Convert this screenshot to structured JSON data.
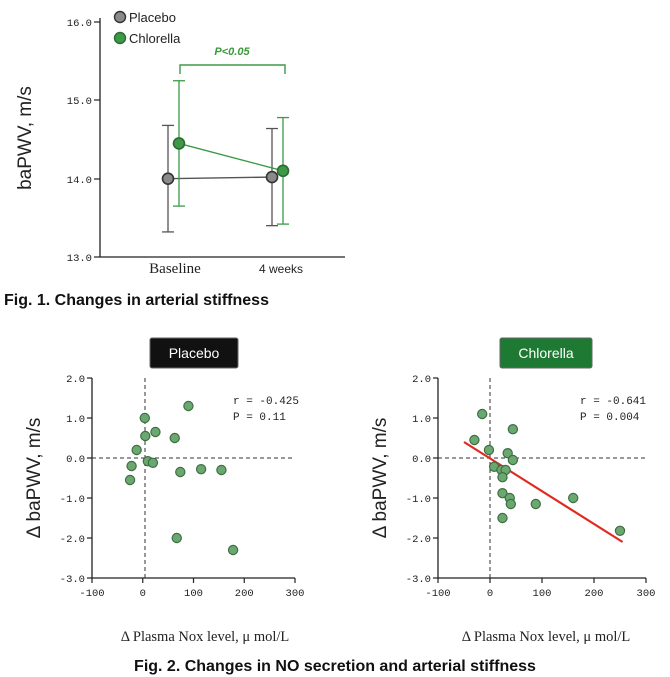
{
  "figure1": {
    "caption": "Fig. 1. Changes in arterial stiffness",
    "ylabel": "baPWV, m/s",
    "yticks": [
      "16.0",
      "15.0",
      "14.0",
      "13.0"
    ],
    "legend": [
      "Placebo",
      "Chlorella"
    ],
    "pvalue": "P<0.05",
    "colors": {
      "placebo": "#8a8a8a",
      "chlorella": "#3c9a46",
      "placebo_line": "#555555",
      "chlorella_line": "#3c9a46"
    }
  },
  "figure2": {
    "caption": "Fig. 2. Changes in NO secretion and arterial stiffness",
    "ylabel": "Δ baPWV, m/s",
    "xlabel": "Δ Plasma Nox level, μ mol/L",
    "yticks": [
      "2.0",
      "1.0",
      "0.0",
      "-1.0",
      "-2.0",
      "-3.0"
    ],
    "xticks": [
      "-100",
      "0",
      "100",
      "200",
      "300"
    ],
    "placebo": {
      "badge": "Placebo",
      "r": "r = -0.425",
      "p": "P = 0.11"
    },
    "chlorella": {
      "badge": "Chlorella",
      "r": "r = -0.641",
      "p": "P = 0.004"
    },
    "colors": {
      "badge_placebo": "#111111",
      "badge_chlorella": "#1e7a32",
      "point": "#6aa870",
      "fit_line": "#e02a20"
    }
  },
  "chart_data": [
    {
      "type": "line",
      "categories": [
        "Baseline",
        "4 weeks"
      ],
      "ylabel": "baPWV, m/s",
      "ylim": [
        13.0,
        16.0
      ],
      "series": [
        {
          "name": "Placebo",
          "values": [
            14.0,
            14.02
          ],
          "error": [
            0.68,
            0.62
          ]
        },
        {
          "name": "Chlorella",
          "values": [
            14.45,
            14.1
          ],
          "error": [
            0.8,
            0.68
          ]
        }
      ],
      "annotation": "P<0.05"
    },
    {
      "type": "scatter",
      "title": "Placebo",
      "xlabel": "Δ Plasma Nox level, μ mol/L",
      "ylabel": "Δ baPWV, m/s",
      "xlim": [
        -100,
        300
      ],
      "ylim": [
        -3.0,
        2.0
      ],
      "annotation": [
        "r = -0.425",
        "P = 0.11"
      ],
      "points": [
        [
          4,
          1.0
        ],
        [
          90,
          1.3
        ],
        [
          -12,
          0.2
        ],
        [
          5,
          0.55
        ],
        [
          25,
          0.65
        ],
        [
          63,
          0.5
        ],
        [
          -22,
          -0.2
        ],
        [
          10,
          -0.08
        ],
        [
          20,
          -0.12
        ],
        [
          -25,
          -0.55
        ],
        [
          74,
          -0.35
        ],
        [
          115,
          -0.28
        ],
        [
          155,
          -0.3
        ],
        [
          67,
          -2.0
        ],
        [
          178,
          -2.3
        ]
      ]
    },
    {
      "type": "scatter",
      "title": "Chlorella",
      "xlabel": "Δ Plasma Nox level, μ mol/L",
      "ylabel": "Δ baPWV, m/s",
      "xlim": [
        -100,
        300
      ],
      "ylim": [
        -3.0,
        2.0
      ],
      "annotation": [
        "r = -0.641",
        "P = 0.004"
      ],
      "points": [
        [
          -15,
          1.1
        ],
        [
          -30,
          0.45
        ],
        [
          44,
          0.72
        ],
        [
          -2,
          0.2
        ],
        [
          34,
          0.12
        ],
        [
          44,
          -0.05
        ],
        [
          8,
          -0.22
        ],
        [
          22,
          -0.3
        ],
        [
          30,
          -0.3
        ],
        [
          24,
          -0.48
        ],
        [
          24,
          -0.88
        ],
        [
          38,
          -1.0
        ],
        [
          40,
          -1.15
        ],
        [
          88,
          -1.15
        ],
        [
          160,
          -1.0
        ],
        [
          24,
          -1.5
        ],
        [
          250,
          -1.82
        ]
      ],
      "fit": {
        "x": [
          -50,
          255
        ],
        "y": [
          0.4,
          -2.1
        ]
      }
    }
  ]
}
